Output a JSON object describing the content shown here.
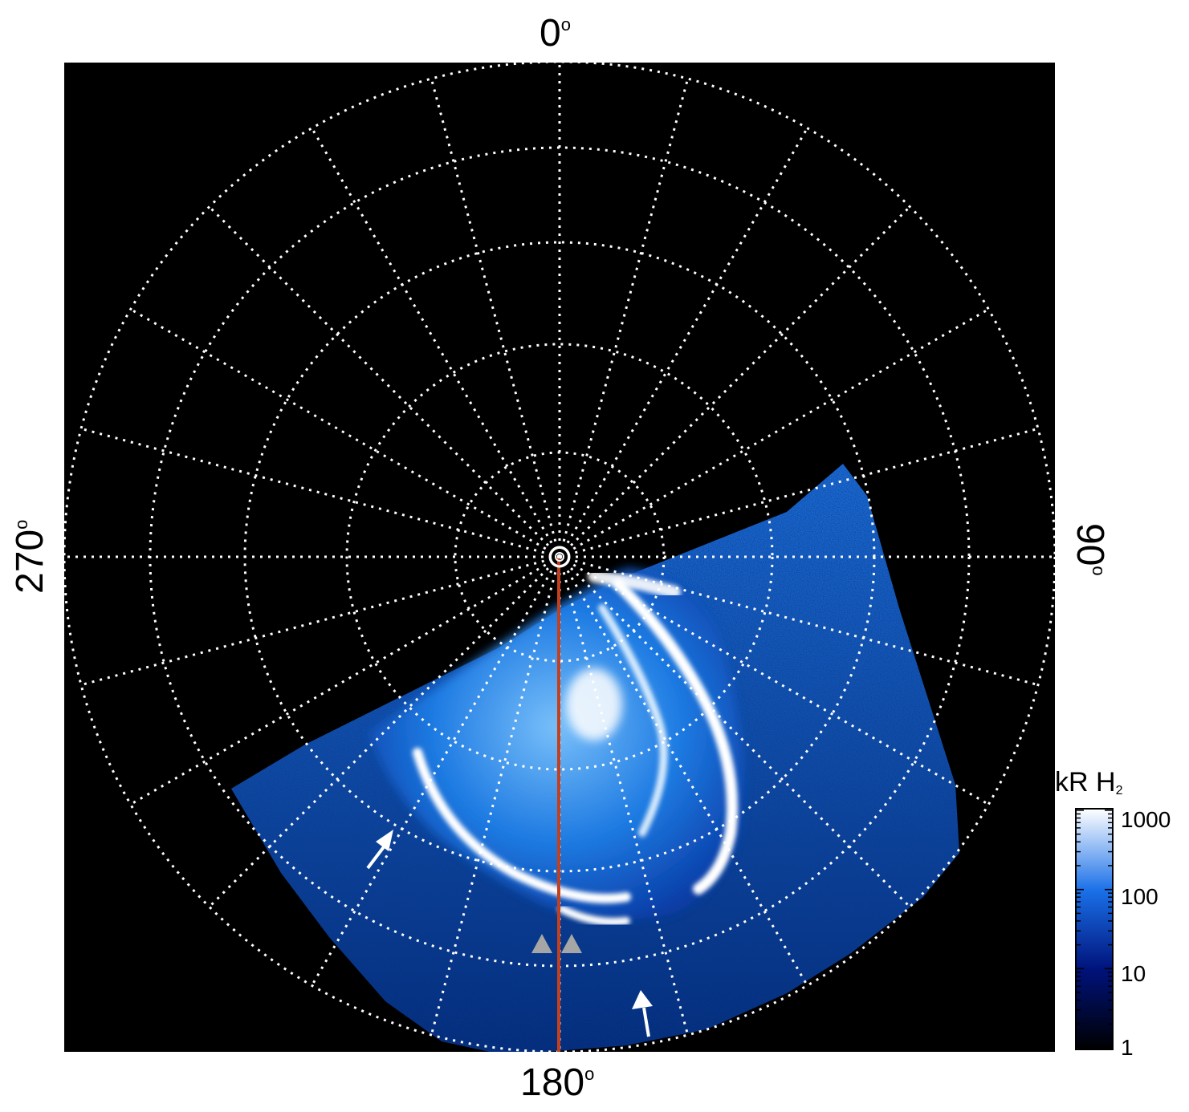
{
  "axes": {
    "top": {
      "value": "0",
      "unit": "o"
    },
    "right": {
      "value": "90",
      "unit": "o"
    },
    "bottom": {
      "value": "180",
      "unit": "o"
    },
    "left": {
      "value": "270",
      "unit": "o"
    }
  },
  "colorbar": {
    "title": "kR H",
    "title_subscript": "2",
    "scale": "log",
    "ticks": [
      "1000",
      "100",
      "10",
      "1"
    ],
    "tick_values": [
      1000,
      100,
      10,
      1
    ],
    "colors": [
      "#000000",
      "#00127a",
      "#1a70e8",
      "#ffffff"
    ]
  },
  "map": {
    "background": "#000000",
    "grid_color": "#ffffff",
    "meridian_line_color": "#c2401e",
    "arrow_color": "#ffffff",
    "marker_color": "#a6a6a6"
  }
}
